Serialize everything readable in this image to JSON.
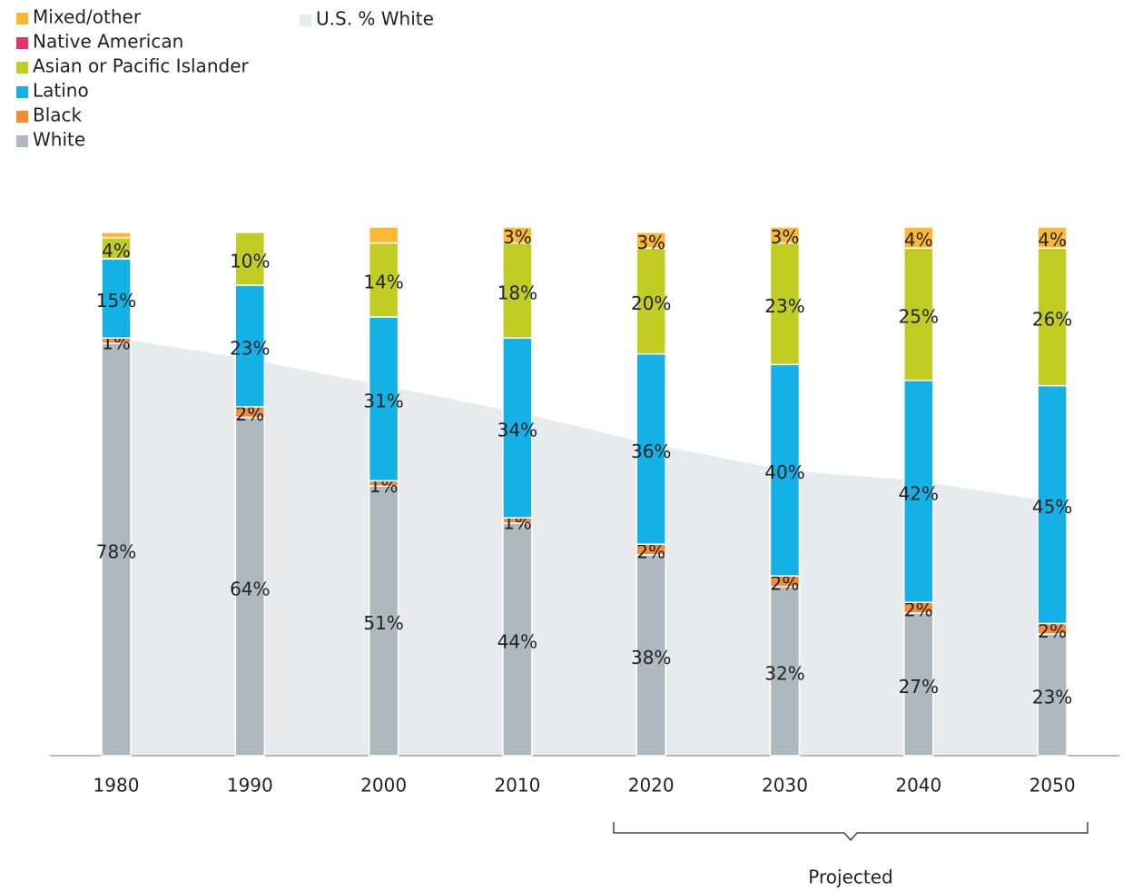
{
  "chart_data": {
    "type": "bar",
    "stacked": true,
    "categories": [
      "1980",
      "1990",
      "2000",
      "2010",
      "2020",
      "2030",
      "2040",
      "2050"
    ],
    "ylim": [
      0,
      100
    ],
    "series": [
      {
        "name": "White",
        "color": "#aeb8bf",
        "values": [
          78,
          64,
          51,
          44,
          38,
          32,
          27,
          23
        ],
        "value_labels": [
          "78%",
          "64%",
          "51%",
          "44%",
          "38%",
          "32%",
          "27%",
          "23%"
        ]
      },
      {
        "name": "Black",
        "color": "#f58b32",
        "values": [
          1,
          2,
          1,
          1,
          2,
          2,
          2,
          2
        ],
        "value_labels": [
          "1%",
          "2%",
          "1%",
          "1%",
          "2%",
          "2%",
          "2%",
          "2%"
        ]
      },
      {
        "name": "Latino",
        "color": "#13b1e6",
        "values": [
          15,
          23,
          31,
          34,
          36,
          40,
          42,
          45
        ],
        "value_labels": [
          "15%",
          "23%",
          "31%",
          "34%",
          "36%",
          "40%",
          "42%",
          "45%"
        ]
      },
      {
        "name": "Asian or Pacific Islander",
        "color": "#c2cd23",
        "values": [
          4,
          10,
          14,
          18,
          20,
          23,
          25,
          26
        ],
        "value_labels": [
          "4%",
          "10%",
          "14%",
          "18%",
          "20%",
          "23%",
          "25%",
          "26%"
        ]
      },
      {
        "name": "Native American",
        "color": "#e6326e",
        "values": [
          0,
          0,
          0,
          0,
          0,
          0,
          0,
          0
        ],
        "value_labels": [
          null,
          null,
          null,
          null,
          null,
          null,
          null,
          null
        ]
      },
      {
        "name": "Mixed/other",
        "color": "#fbb931",
        "values": [
          1,
          0,
          3,
          3,
          3,
          3,
          4,
          4
        ],
        "value_labels": [
          null,
          null,
          null,
          "3%",
          "3%",
          "3%",
          "4%",
          "4%"
        ]
      }
    ],
    "area": {
      "name": "U.S. % White",
      "color": "#e8ebee",
      "values": [
        79,
        75,
        70,
        65,
        59,
        54,
        52,
        48
      ]
    },
    "annotation": "Projected"
  }
}
